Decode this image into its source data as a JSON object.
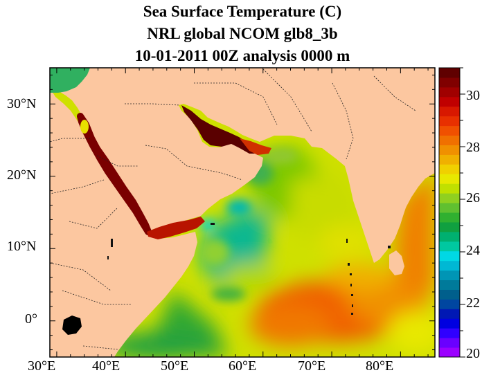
{
  "title": {
    "line1": "Sea Surface Temperature (C)",
    "line2": "NRL global NCOM glb8_3b",
    "line3": "10-01-2011 00Z analysis   0000 m"
  },
  "map": {
    "lon_range": [
      29,
      85
    ],
    "lat_range": [
      -5,
      35
    ],
    "lon_ticks": [
      "30°E",
      "40°E",
      "50°E",
      "60°E",
      "70°E",
      "80°E"
    ],
    "lat_ticks": [
      "30°N",
      "20°N",
      "10°N",
      "0°"
    ],
    "land_color": "#fcc7a0"
  },
  "colorbar": {
    "min": 20,
    "max": 31,
    "tick_labels": [
      "20",
      "22",
      "24",
      "26",
      "28",
      "30"
    ],
    "colors": [
      "#9b00ff",
      "#6a00ff",
      "#3000ff",
      "#0000e0",
      "#0018b4",
      "#0046a0",
      "#005f8c",
      "#007a9a",
      "#0095b5",
      "#00b8d4",
      "#00d8e4",
      "#00c8a0",
      "#00b070",
      "#10a040",
      "#30b030",
      "#60c030",
      "#90d020",
      "#c0e000",
      "#e8e800",
      "#f0d000",
      "#f0b000",
      "#f09000",
      "#f07000",
      "#f05000",
      "#e83000",
      "#d81800",
      "#c00000",
      "#a00000",
      "#800000",
      "#600000"
    ]
  }
}
